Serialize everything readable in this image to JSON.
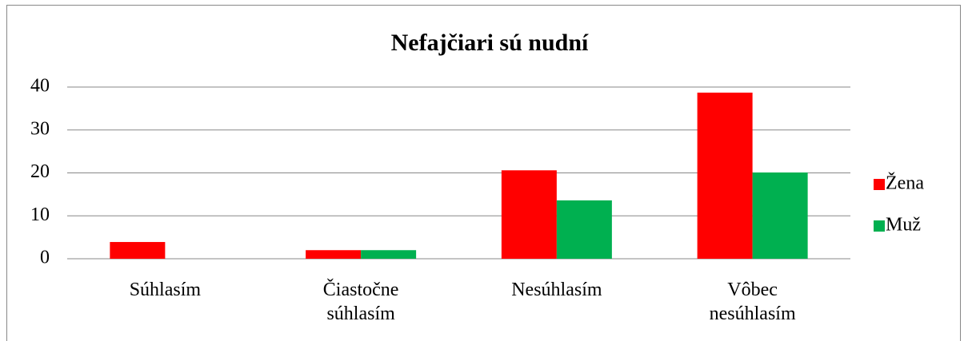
{
  "chart_data": {
    "type": "bar",
    "title": "Nefajčiari sú nudní",
    "categories": [
      "Súhlasím",
      "Čiastočne súhlasím",
      "Nesúhlasím",
      "Vôbec nesúhlasím"
    ],
    "series": [
      {
        "name": "Žena",
        "color": "#ff0000",
        "values": [
          3.9,
          2.0,
          20.6,
          38.7
        ]
      },
      {
        "name": "Muž",
        "color": "#00b050",
        "values": [
          0,
          2.0,
          13.6,
          20.1
        ]
      }
    ],
    "ylim": [
      0,
      40
    ],
    "yticks": [
      0,
      10,
      20,
      30,
      40
    ],
    "grid": true,
    "legend": "right"
  }
}
